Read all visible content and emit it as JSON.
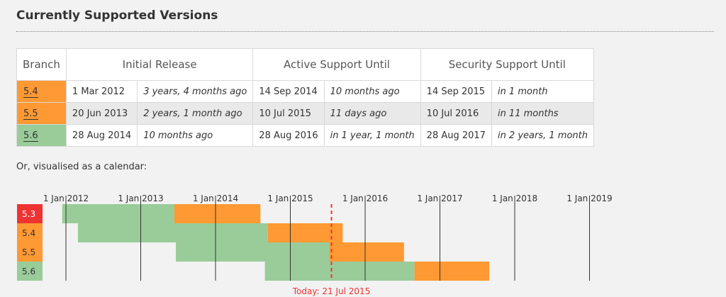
{
  "heading": "Currently Supported Versions",
  "table": {
    "headers": {
      "branch": "Branch",
      "initial": "Initial Release",
      "active": "Active Support Until",
      "security": "Security Support Until"
    },
    "rows": [
      {
        "branch": "5.4",
        "initial_date": "1 Mar 2012",
        "initial_rel": "3 years, 4 months ago",
        "active_date": "14 Sep 2014",
        "active_rel": "10 months ago",
        "security_date": "14 Sep 2015",
        "security_rel": "in 1 month",
        "color": "#ff9933"
      },
      {
        "branch": "5.5",
        "initial_date": "20 Jun 2013",
        "initial_rel": "2 years, 1 month ago",
        "active_date": "10 Jul 2015",
        "active_rel": "11 days ago",
        "security_date": "10 Jul 2016",
        "security_rel": "in 11 months",
        "color": "#ff9933"
      },
      {
        "branch": "5.6",
        "initial_date": "28 Aug 2014",
        "initial_rel": "10 months ago",
        "active_date": "28 Aug 2016",
        "active_rel": "in 1 year, 1 month",
        "security_date": "28 Aug 2017",
        "security_rel": "in 2 years, 1 month",
        "color": "#99cc99"
      }
    ]
  },
  "caption": "Or, visualised as a calendar:",
  "calendar": {
    "years": [
      "1 Jan 2012",
      "1 Jan 2013",
      "1 Jan 2014",
      "1 Jan 2015",
      "1 Jan 2016",
      "1 Jan 2017",
      "1 Jan 2018",
      "1 Jan 2019"
    ],
    "today_label": "Today: 21 Jul 2015",
    "today_year": 2015.55,
    "colors": {
      "eol": "#ee3333",
      "security": "#ff9933",
      "active": "#99cc99",
      "today": "#ee3333"
    },
    "branches": [
      {
        "name": "5.3",
        "status": "eol",
        "release": 2011.95,
        "active_end": 2013.45,
        "security_end": 2014.6
      },
      {
        "name": "5.4",
        "status": "security",
        "release": 2012.16,
        "active_end": 2014.7,
        "security_end": 2015.7
      },
      {
        "name": "5.5",
        "status": "security",
        "release": 2013.47,
        "active_end": 2015.52,
        "security_end": 2016.52
      },
      {
        "name": "5.6",
        "status": "active",
        "release": 2014.66,
        "active_end": 2016.66,
        "security_end": 2017.66
      }
    ]
  }
}
